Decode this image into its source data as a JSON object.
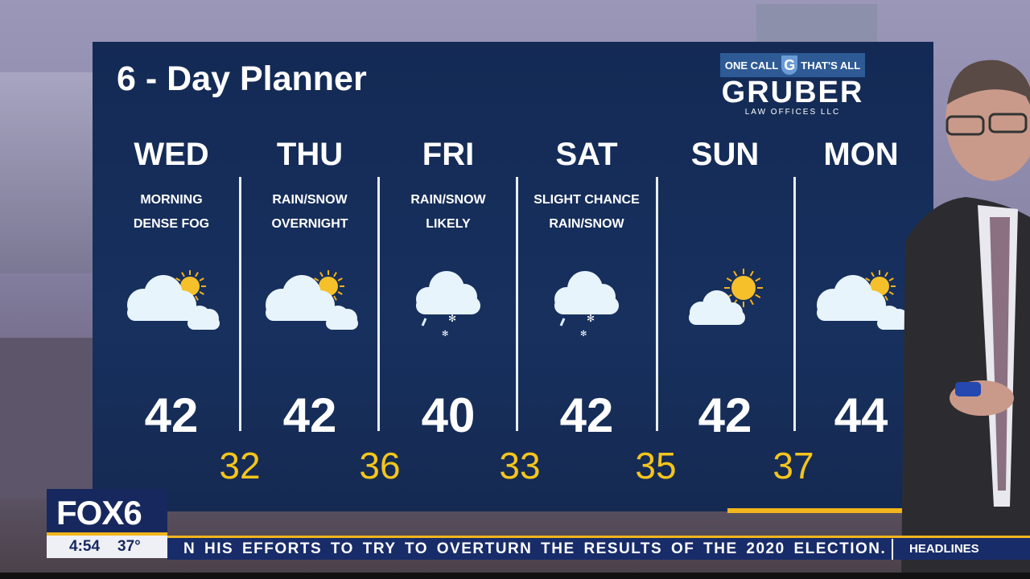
{
  "panel": {
    "title": "6 - Day Planner"
  },
  "sponsor": {
    "tagline_left": "ONE CALL",
    "tagline_right": "THAT'S ALL",
    "letter": "G",
    "name": "GRUBER",
    "sub": "LAW OFFICES LLC"
  },
  "days": [
    {
      "day": "WED",
      "desc1": "MORNING",
      "desc2": "DENSE FOG",
      "icon": "partly-cloudy-icon",
      "high": "42"
    },
    {
      "day": "THU",
      "desc1": "RAIN/SNOW",
      "desc2": "OVERNIGHT",
      "icon": "partly-cloudy-icon",
      "high": "42"
    },
    {
      "day": "FRI",
      "desc1": "RAIN/SNOW",
      "desc2": "LIKELY",
      "icon": "rain-snow-icon",
      "high": "40"
    },
    {
      "day": "SAT",
      "desc1": "SLIGHT CHANCE",
      "desc2": "RAIN/SNOW",
      "icon": "rain-snow-icon",
      "high": "42"
    },
    {
      "day": "SUN",
      "desc1": "",
      "desc2": "",
      "icon": "mostly-sunny-icon",
      "high": "42"
    },
    {
      "day": "MON",
      "desc1": "",
      "desc2": "",
      "icon": "partly-cloudy-icon",
      "high": "44"
    }
  ],
  "lows": [
    "32",
    "36",
    "33",
    "35",
    "37"
  ],
  "station": {
    "logo": "FOX6",
    "time": "4:54",
    "temp": "37°"
  },
  "ticker": {
    "text": "N HIS EFFORTS TO TRY TO OVERTURN THE RESULTS OF THE 2020 ELECTION.",
    "section": "HEADLINES"
  },
  "colors": {
    "panel": "#17305e",
    "low_temp": "#f4c51c",
    "accent": "#f2b51c"
  }
}
